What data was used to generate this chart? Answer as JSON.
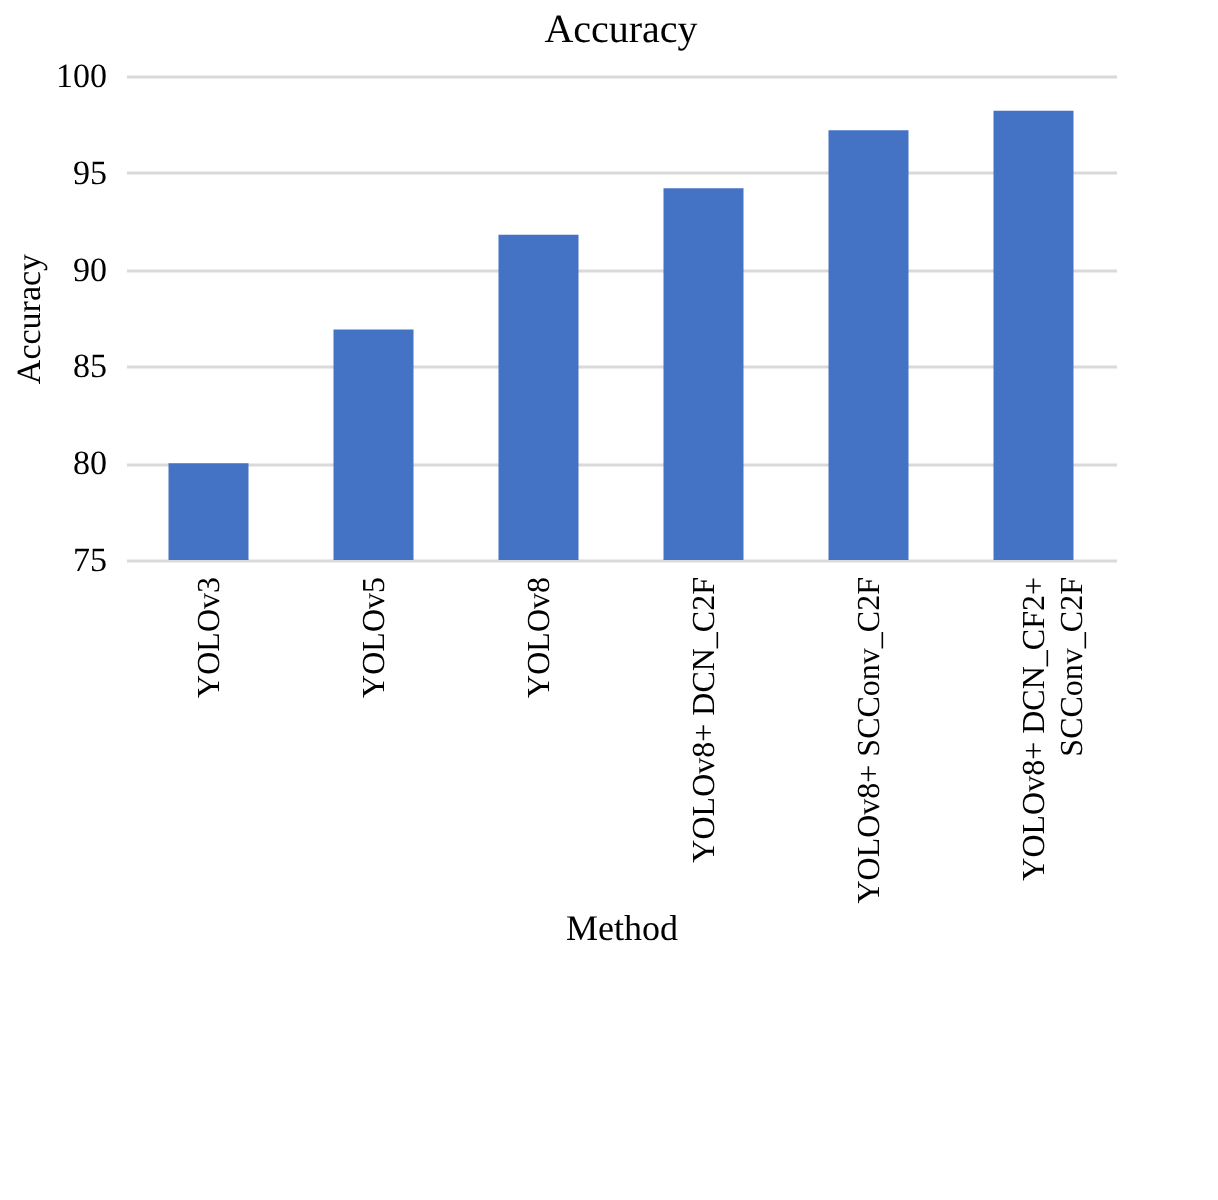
{
  "chart_data": {
    "type": "bar",
    "title": "Accuracy",
    "xlabel": "Method",
    "ylabel": "Accuracy",
    "categories": [
      "YOLOv3",
      "YOLOv5",
      "YOLOv8",
      "YOLOv8+ DCN_C2F",
      "YOLOv8+ SCConv_C2F",
      "YOLOv8+ DCN_CF2+\nSCConv_C2F"
    ],
    "values": [
      80.0,
      86.9,
      91.8,
      94.2,
      97.2,
      98.2
    ],
    "color": "#4472c4",
    "ylim": [
      75,
      100
    ],
    "yticks": [
      75,
      80,
      85,
      90,
      95,
      100
    ],
    "grid": "y"
  }
}
